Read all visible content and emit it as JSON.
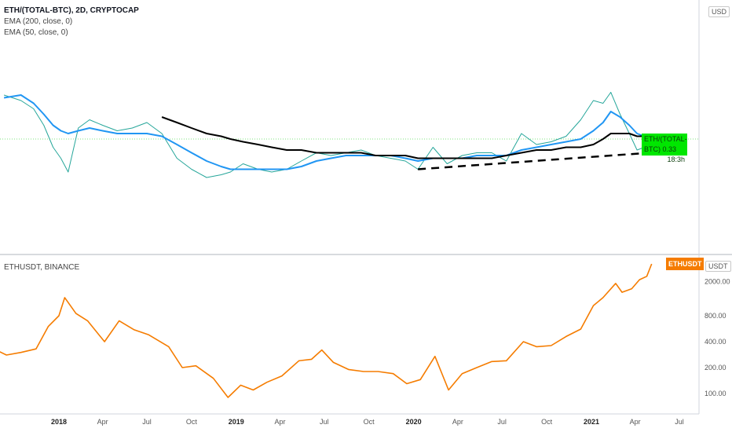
{
  "upper_pane": {
    "title": "ETH/(TOTAL-BTC), 2D, CRYPTOCAP",
    "indicators": [
      "EMA (200, close, 0)",
      "EMA (50, close, 0)"
    ],
    "currency_badge": "USD",
    "price_tag": {
      "label": "ETH/(TOTAL-BTC)",
      "value": "0.33",
      "time": "18:3h"
    }
  },
  "lower_pane": {
    "title": "ETHUSDT, BINANCE",
    "currency_badge": "USDT",
    "price_tag": {
      "label": "ETHUSDT"
    }
  },
  "chart_data": [
    {
      "type": "line",
      "title": "ETH/(TOTAL-BTC), 2D, CRYPTOCAP",
      "note": "candlesticks approximated by close line",
      "x": [
        "2017-09-10",
        "2017-10-15",
        "2017-11-10",
        "2017-12-01",
        "2017-12-20",
        "2018-01-05",
        "2018-01-20",
        "2018-02-10",
        "2018-03-05",
        "2018-04-01",
        "2018-05-01",
        "2018-06-01",
        "2018-07-01",
        "2018-08-01",
        "2018-09-01",
        "2018-10-01",
        "2018-11-01",
        "2018-12-01",
        "2018-12-20",
        "2019-01-15",
        "2019-02-15",
        "2019-03-15",
        "2019-04-15",
        "2019-05-15",
        "2019-06-15",
        "2019-07-15",
        "2019-08-15",
        "2019-09-15",
        "2019-10-15",
        "2019-11-15",
        "2019-12-15",
        "2020-01-10",
        "2020-02-10",
        "2020-03-10",
        "2020-04-10",
        "2020-05-10",
        "2020-06-10",
        "2020-07-10",
        "2020-08-10",
        "2020-09-10",
        "2020-10-10",
        "2020-11-10",
        "2020-12-10",
        "2021-01-05",
        "2021-01-25",
        "2021-02-10",
        "2021-03-01",
        "2021-03-20",
        "2021-04-05",
        "2021-04-20",
        "2021-05-01"
      ],
      "series": [
        {
          "name": "ETH/(TOTAL-BTC)",
          "color": "#26a69a",
          "values": [
            0.49,
            0.47,
            0.44,
            0.38,
            0.3,
            0.26,
            0.21,
            0.37,
            0.4,
            0.38,
            0.36,
            0.37,
            0.39,
            0.35,
            0.26,
            0.22,
            0.19,
            0.2,
            0.21,
            0.24,
            0.22,
            0.21,
            0.22,
            0.25,
            0.28,
            0.27,
            0.28,
            0.29,
            0.27,
            0.26,
            0.25,
            0.22,
            0.3,
            0.24,
            0.27,
            0.28,
            0.28,
            0.25,
            0.35,
            0.31,
            0.32,
            0.34,
            0.4,
            0.47,
            0.46,
            0.5,
            0.42,
            0.35,
            0.29,
            0.3,
            0.33
          ]
        },
        {
          "name": "EMA (50, close, 0)",
          "color": "#2196f3",
          "values": [
            0.48,
            0.49,
            0.46,
            0.42,
            0.38,
            0.36,
            0.35,
            0.36,
            0.37,
            0.36,
            0.35,
            0.35,
            0.35,
            0.34,
            0.31,
            0.28,
            0.25,
            0.23,
            0.22,
            0.22,
            0.22,
            0.22,
            0.22,
            0.23,
            0.25,
            0.26,
            0.27,
            0.27,
            0.27,
            0.27,
            0.26,
            0.25,
            0.26,
            0.26,
            0.26,
            0.27,
            0.27,
            0.27,
            0.29,
            0.3,
            0.31,
            0.32,
            0.33,
            0.36,
            0.39,
            0.43,
            0.41,
            0.38,
            0.35,
            0.34,
            0.33
          ]
        },
        {
          "name": "EMA (200, close, 0)",
          "color": "#000000",
          "values": [
            null,
            null,
            null,
            null,
            null,
            null,
            null,
            null,
            null,
            null,
            null,
            null,
            null,
            0.41,
            0.39,
            0.37,
            0.35,
            0.34,
            0.33,
            0.32,
            0.31,
            0.3,
            0.29,
            0.29,
            0.28,
            0.28,
            0.28,
            0.28,
            0.27,
            0.27,
            0.27,
            0.26,
            0.26,
            0.26,
            0.26,
            0.26,
            0.26,
            0.27,
            0.28,
            0.29,
            0.29,
            0.3,
            0.3,
            0.31,
            0.33,
            0.35,
            0.35,
            0.35,
            0.34,
            0.34,
            0.33
          ]
        }
      ],
      "annotations": [
        {
          "type": "dashed-trendline",
          "from": [
            "2020-01-10",
            0.22
          ],
          "to": [
            "2021-05-01",
            0.28
          ]
        },
        {
          "type": "dashed-trendline",
          "from": [
            "2021-05-01",
            0.28
          ],
          "to": [
            "2021-05-25",
            0.285
          ]
        }
      ],
      "ylim": [
        0.15,
        0.65
      ],
      "current_value": 0.33
    },
    {
      "type": "line",
      "title": "ETHUSDT, BINANCE",
      "scale": "log",
      "x": [
        "2017-08-20",
        "2017-09-15",
        "2017-10-15",
        "2017-11-15",
        "2017-12-10",
        "2018-01-01",
        "2018-01-13",
        "2018-02-05",
        "2018-03-01",
        "2018-04-05",
        "2018-05-05",
        "2018-06-05",
        "2018-07-05",
        "2018-08-15",
        "2018-09-12",
        "2018-10-10",
        "2018-11-15",
        "2018-12-15",
        "2019-01-10",
        "2019-02-05",
        "2019-03-05",
        "2019-04-05",
        "2019-05-10",
        "2019-06-05",
        "2019-06-26",
        "2019-07-20",
        "2019-08-20",
        "2019-09-20",
        "2019-10-20",
        "2019-11-20",
        "2019-12-18",
        "2020-01-15",
        "2020-02-14",
        "2020-03-13",
        "2020-04-10",
        "2020-05-10",
        "2020-06-10",
        "2020-07-10",
        "2020-08-14",
        "2020-09-10",
        "2020-10-10",
        "2020-11-10",
        "2020-12-10",
        "2021-01-05",
        "2021-01-25",
        "2021-02-20",
        "2021-03-05",
        "2021-03-25",
        "2021-04-10",
        "2021-04-25",
        "2021-05-05"
      ],
      "series": [
        {
          "name": "ETHUSDT",
          "color": "#f57c00",
          "values": [
            330,
            280,
            300,
            330,
            600,
            800,
            1300,
            850,
            700,
            400,
            700,
            550,
            480,
            350,
            200,
            210,
            150,
            90,
            125,
            110,
            135,
            160,
            240,
            250,
            320,
            230,
            190,
            180,
            180,
            170,
            130,
            145,
            270,
            110,
            170,
            200,
            235,
            240,
            400,
            350,
            360,
            460,
            560,
            1050,
            1300,
            1900,
            1500,
            1650,
            2100,
            2300,
            3200
          ]
        }
      ],
      "ylim": [
        60,
        4000
      ],
      "y_ticks": [
        "100.00",
        "200.00",
        "400.00",
        "800.00",
        "2000.00"
      ]
    }
  ],
  "x_axis_labels": [
    "2018",
    "Apr",
    "Jul",
    "Oct",
    "2019",
    "Apr",
    "Jul",
    "Oct",
    "2020",
    "Apr",
    "Jul",
    "Oct",
    "2021",
    "Apr",
    "Jul"
  ]
}
